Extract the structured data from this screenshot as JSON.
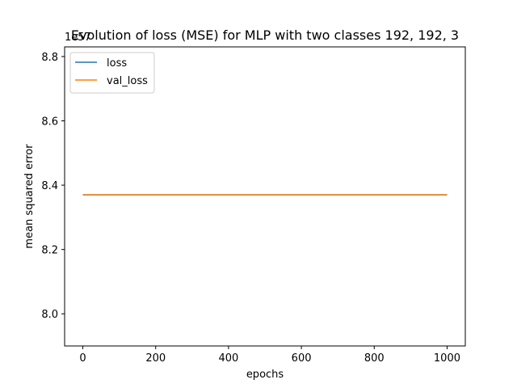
{
  "chart_data": {
    "type": "line",
    "title": "Evolution of loss (MSE) for MLP with two classes 192, 192, 3",
    "xlabel": "epochs",
    "ylabel": "mean squared error",
    "y_offset_label": "1e57",
    "xlim": [
      -50,
      1050
    ],
    "ylim": [
      7.9,
      8.83
    ],
    "x_ticks": [
      0,
      200,
      400,
      600,
      800,
      1000
    ],
    "x_tick_labels": [
      "0",
      "200",
      "400",
      "600",
      "800",
      "1000"
    ],
    "y_ticks": [
      8.0,
      8.2,
      8.4,
      8.6,
      8.8
    ],
    "y_tick_labels": [
      "8.0",
      "8.2",
      "8.4",
      "8.6",
      "8.8"
    ],
    "grid": false,
    "legend_placement": "top-left",
    "series": [
      {
        "name": "loss",
        "color": "#1f77b4",
        "x": [
          0,
          1000
        ],
        "y": [
          8.37,
          8.37
        ]
      },
      {
        "name": "val_loss",
        "color": "#ff7f0e",
        "x": [
          0,
          1000
        ],
        "y": [
          8.37,
          8.37
        ]
      }
    ]
  }
}
